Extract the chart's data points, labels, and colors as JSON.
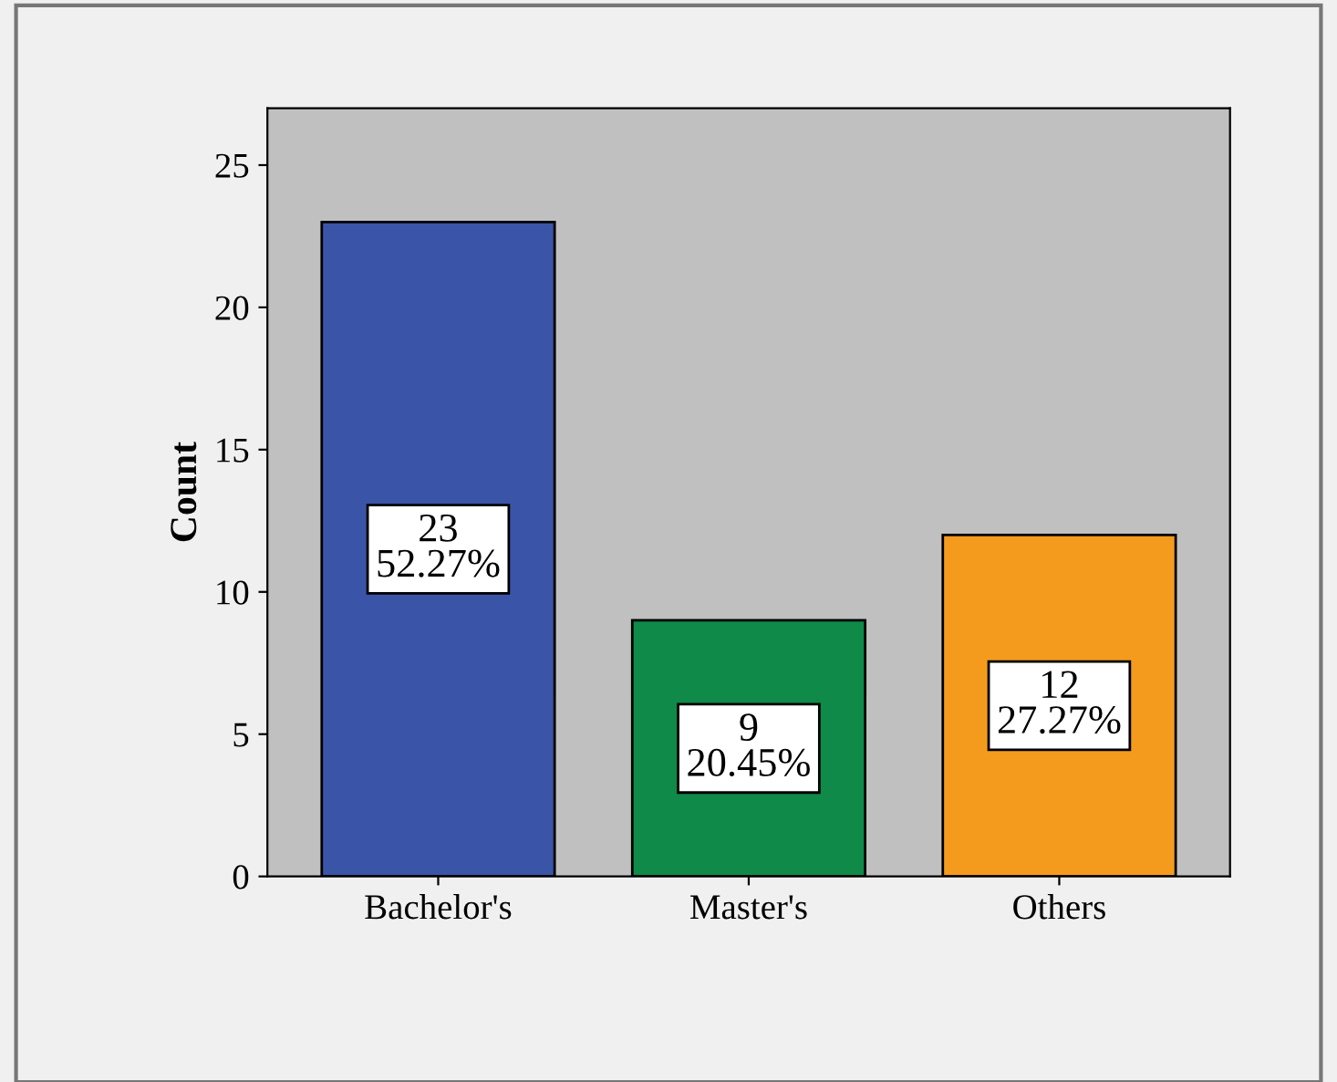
{
  "chart_data": {
    "type": "bar",
    "ylabel": "Count",
    "categories": [
      "Bachelor's",
      "Master's",
      "Others"
    ],
    "values": [
      23,
      9,
      12
    ],
    "colors": [
      "#3a55a8",
      "#0f8a48",
      "#f49b1e"
    ],
    "value_labels": [
      "23\n52.27%",
      "9\n20.45%",
      "12\n27.27%"
    ],
    "ylim": [
      0,
      27
    ],
    "yticks": [
      0,
      5,
      10,
      15,
      20,
      25
    ],
    "grid": false,
    "legend": false
  }
}
